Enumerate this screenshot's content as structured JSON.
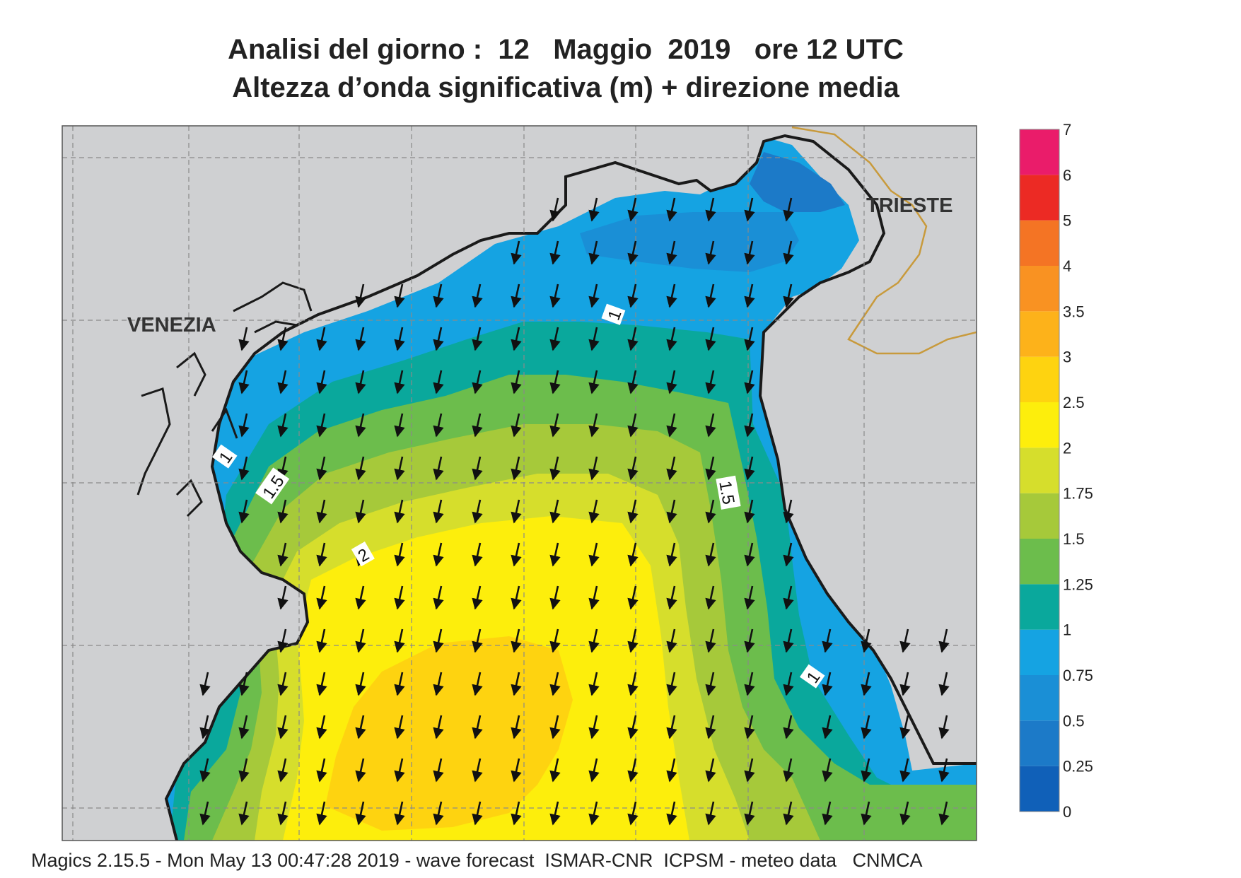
{
  "title": {
    "line1": "Analisi del giorno :  12   Maggio  2019   ore 12 UTC",
    "line2": "Altezza d’onda significativa (m) + direzione media"
  },
  "map": {
    "cities": [
      "VENEZIA",
      "TRIESTE"
    ],
    "contour_labels": [
      "1",
      "1",
      "1.5",
      "1.5",
      "2",
      "1"
    ],
    "land_color": "#cfd0d2",
    "coastline_color": "#1a1a1a",
    "border_color": "#c89a3c",
    "grid": true,
    "wave_direction": "from north-northeast, arrows pointing south-southwest",
    "max_wave_region": "southern central basin, 2.5–3 m"
  },
  "legend": {
    "ticks": [
      "7",
      "6",
      "5",
      "4",
      "3.5",
      "3",
      "2.5",
      "2",
      "1.75",
      "1.5",
      "1.25",
      "1",
      "0.75",
      "0.5",
      "0.25",
      "0"
    ],
    "bins": [
      {
        "from": 0,
        "to": 0.25,
        "color": "#1060b8"
      },
      {
        "from": 0.25,
        "to": 0.5,
        "color": "#1c7ac8"
      },
      {
        "from": 0.5,
        "to": 0.75,
        "color": "#1a8fd6"
      },
      {
        "from": 0.75,
        "to": 1,
        "color": "#15a3e2"
      },
      {
        "from": 1,
        "to": 1.25,
        "color": "#0aa89c"
      },
      {
        "from": 1.25,
        "to": 1.5,
        "color": "#6cbd4c"
      },
      {
        "from": 1.5,
        "to": 1.75,
        "color": "#a6c93a"
      },
      {
        "from": 1.75,
        "to": 2,
        "color": "#d6de2c"
      },
      {
        "from": 2,
        "to": 2.5,
        "color": "#fdee0c"
      },
      {
        "from": 2.5,
        "to": 3,
        "color": "#fed310"
      },
      {
        "from": 3,
        "to": 3.5,
        "color": "#fdb21a"
      },
      {
        "from": 3.5,
        "to": 4,
        "color": "#f99222"
      },
      {
        "from": 4,
        "to": 5,
        "color": "#f47424"
      },
      {
        "from": 5,
        "to": 6,
        "color": "#ec2a24"
      },
      {
        "from": 6,
        "to": 7,
        "color": "#ea1c6a"
      }
    ]
  },
  "footer": "Magics 2.15.5 - Mon May 13 00:47:28 2019 - wave forecast  ISMAR-CNR  ICPSM - meteo data   CNMCA"
}
